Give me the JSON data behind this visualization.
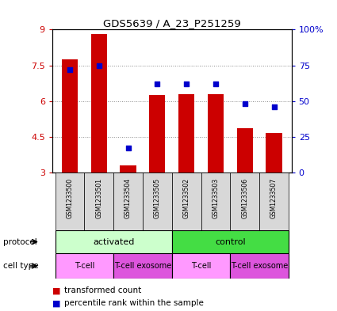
{
  "title": "GDS5639 / A_23_P251259",
  "samples": [
    "GSM1233500",
    "GSM1233501",
    "GSM1233504",
    "GSM1233505",
    "GSM1233502",
    "GSM1233503",
    "GSM1233506",
    "GSM1233507"
  ],
  "transformed_count": [
    7.75,
    8.8,
    3.3,
    6.25,
    6.3,
    6.3,
    4.85,
    4.65
  ],
  "percentile_rank": [
    72,
    75,
    17,
    62,
    62,
    62,
    48,
    46
  ],
  "bar_color": "#cc0000",
  "dot_color": "#0000cc",
  "ylim_left": [
    3,
    9
  ],
  "ylim_right": [
    0,
    100
  ],
  "yticks_left": [
    3,
    4.5,
    6,
    7.5,
    9
  ],
  "yticks_right": [
    0,
    25,
    50,
    75,
    100
  ],
  "ytick_labels_left": [
    "3",
    "4.5",
    "6",
    "7.5",
    "9"
  ],
  "ytick_labels_right": [
    "0",
    "25",
    "50",
    "75",
    "100%"
  ],
  "protocol_groups": [
    {
      "label": "activated",
      "start": 0,
      "end": 4,
      "color": "#ccffcc"
    },
    {
      "label": "control",
      "start": 4,
      "end": 8,
      "color": "#44dd44"
    }
  ],
  "celltype_groups": [
    {
      "label": "T-cell",
      "start": 0,
      "end": 2,
      "color": "#ff99ff"
    },
    {
      "label": "T-cell exosome",
      "start": 2,
      "end": 4,
      "color": "#dd55dd"
    },
    {
      "label": "T-cell",
      "start": 4,
      "end": 6,
      "color": "#ff99ff"
    },
    {
      "label": "T-cell exosome",
      "start": 6,
      "end": 8,
      "color": "#dd55dd"
    }
  ],
  "grid_color": "#888888",
  "bar_bottom": 3,
  "bar_width": 0.55,
  "fig_width": 4.25,
  "fig_height": 3.93,
  "fig_dpi": 100
}
